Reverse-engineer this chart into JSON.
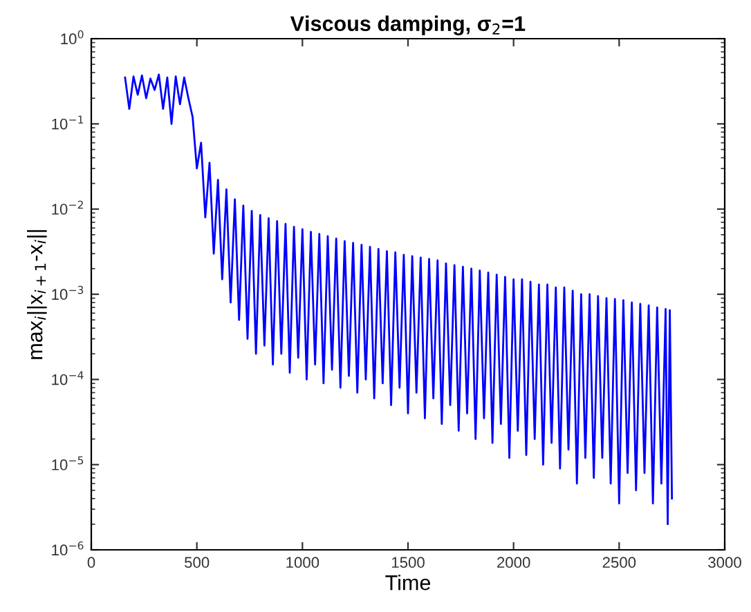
{
  "chart_data": {
    "type": "line",
    "title": "Viscous damping, σ$_{2}$=1",
    "xlabel": "Time",
    "ylabel": "max$_{i}$||x$_{i+1}$-x$_{i}$||",
    "log": "y",
    "grid": false,
    "legend": false,
    "marker": "none",
    "line_style": "solid",
    "xlim": [
      0,
      3000
    ],
    "xticks": [
      0,
      500,
      1000,
      1500,
      2000,
      2500,
      3000
    ],
    "ylim": [
      1e-06,
      1
    ],
    "yticks": [
      {
        "value": 1e-06,
        "label": "10$^{−6}$"
      },
      {
        "value": 1e-05,
        "label": "10$^{−5}$"
      },
      {
        "value": 0.0001,
        "label": "10$^{−4}$"
      },
      {
        "value": 0.001,
        "label": "10$^{−3}$"
      },
      {
        "value": 0.01,
        "label": "10$^{−2}$"
      },
      {
        "value": 0.1,
        "label": "10$^{−1}$"
      },
      {
        "value": 1,
        "label": "10$^{0}$"
      }
    ],
    "series": [
      {
        "color": "#0000ff",
        "x": [
          160,
          180,
          200,
          220,
          240,
          260,
          280,
          300,
          320,
          340,
          360,
          380,
          400,
          420,
          440,
          460,
          480,
          500,
          520,
          540,
          560,
          580,
          600,
          620,
          640,
          660,
          680,
          700,
          720,
          740,
          760,
          780,
          800,
          820,
          840,
          860,
          880,
          900,
          920,
          940,
          960,
          980,
          1000,
          1020,
          1040,
          1060,
          1080,
          1100,
          1120,
          1140,
          1160,
          1180,
          1200,
          1220,
          1240,
          1260,
          1280,
          1300,
          1320,
          1340,
          1360,
          1380,
          1400,
          1420,
          1440,
          1460,
          1480,
          1500,
          1520,
          1540,
          1560,
          1580,
          1600,
          1620,
          1640,
          1660,
          1680,
          1700,
          1720,
          1740,
          1760,
          1780,
          1800,
          1820,
          1840,
          1860,
          1880,
          1900,
          1920,
          1940,
          1960,
          1980,
          2000,
          2020,
          2040,
          2060,
          2080,
          2100,
          2120,
          2140,
          2160,
          2180,
          2200,
          2220,
          2240,
          2260,
          2280,
          2300,
          2320,
          2340,
          2360,
          2380,
          2400,
          2420,
          2440,
          2460,
          2480,
          2500,
          2520,
          2540,
          2560,
          2580,
          2600,
          2620,
          2640,
          2660,
          2680,
          2700,
          2720,
          2730,
          2740,
          2750
        ],
        "values": [
          0.35,
          0.15,
          0.36,
          0.22,
          0.37,
          0.2,
          0.34,
          0.25,
          0.38,
          0.15,
          0.35,
          0.1,
          0.36,
          0.17,
          0.35,
          0.2,
          0.12,
          0.03,
          0.06,
          0.008,
          0.035,
          0.003,
          0.022,
          0.0015,
          0.017,
          0.0008,
          0.013,
          0.0005,
          0.011,
          0.0003,
          0.0095,
          0.0002,
          0.0085,
          0.00025,
          0.0078,
          0.00015,
          0.0072,
          0.0002,
          0.0067,
          0.00012,
          0.0062,
          0.00018,
          0.0058,
          0.0001,
          0.0054,
          0.00015,
          0.0051,
          9e-05,
          0.0048,
          0.00013,
          0.0045,
          8e-05,
          0.0042,
          0.00011,
          0.004,
          7e-05,
          0.0038,
          0.0001,
          0.0036,
          6e-05,
          0.0034,
          9e-05,
          0.0032,
          5e-05,
          0.0031,
          8e-05,
          0.0029,
          4e-05,
          0.0028,
          7e-05,
          0.0027,
          3.5e-05,
          0.0026,
          6e-05,
          0.0025,
          3e-05,
          0.0023,
          5e-05,
          0.0022,
          2.5e-05,
          0.0021,
          4e-05,
          0.002,
          2e-05,
          0.0019,
          3.5e-05,
          0.0018,
          1.8e-05,
          0.0017,
          3e-05,
          0.0016,
          1.2e-05,
          0.0015,
          2.5e-05,
          0.0015,
          1.3e-05,
          0.0014,
          2e-05,
          0.0013,
          1e-05,
          0.0013,
          1.8e-05,
          0.0012,
          9e-06,
          0.0012,
          1.5e-05,
          0.0011,
          6e-06,
          0.001,
          1.2e-05,
          0.001,
          7e-06,
          0.00095,
          1.2e-05,
          0.0009,
          6e-06,
          0.00088,
          3.5e-06,
          0.00085,
          8e-06,
          0.0008,
          5e-06,
          0.00077,
          8e-06,
          0.00074,
          3.5e-06,
          0.0007,
          6e-06,
          0.00067,
          2e-06,
          0.00065,
          4e-06
        ]
      }
    ]
  }
}
